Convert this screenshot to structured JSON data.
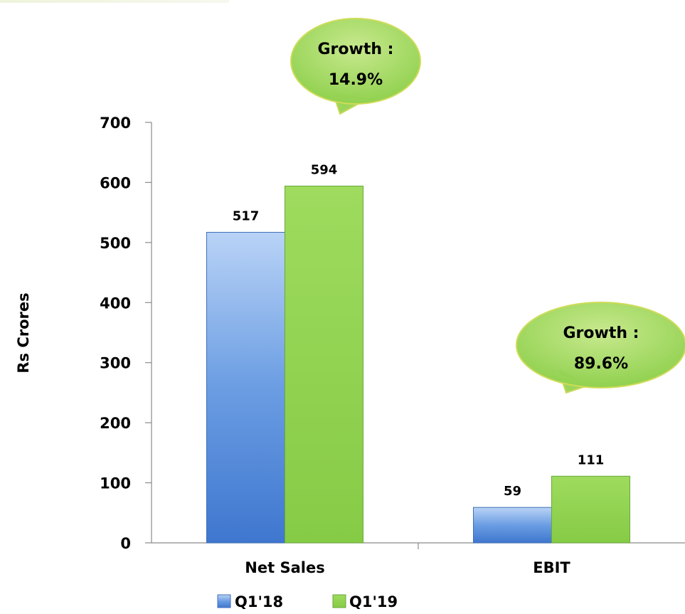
{
  "chart_data": {
    "type": "bar",
    "categories": [
      "Net Sales",
      "EBIT"
    ],
    "series": [
      {
        "name": "Q1'18",
        "values": [
          517,
          59
        ],
        "color": "#4f86d6"
      },
      {
        "name": "Q1'19",
        "values": [
          594,
          111
        ],
        "color": "#8fd14f"
      }
    ],
    "ylabel": "Rs Crores",
    "ylim": [
      0,
      700
    ],
    "yticks": [
      0,
      100,
      200,
      300,
      400,
      500,
      600,
      700
    ],
    "grid": false,
    "legend": "bottom",
    "callouts": [
      {
        "category": "Net Sales",
        "line1": "Growth :",
        "line2": "14.9%"
      },
      {
        "category": "EBIT",
        "line1": "Growth :",
        "line2": "89.6%"
      }
    ]
  }
}
